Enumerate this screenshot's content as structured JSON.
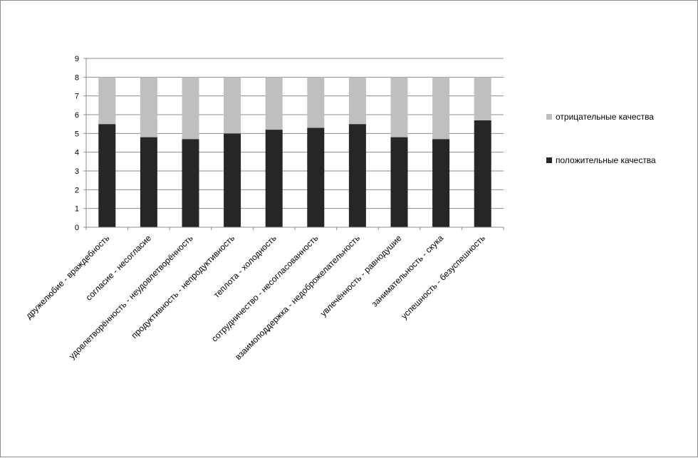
{
  "chart_data": {
    "type": "bar",
    "stacked": true,
    "categories": [
      "дружелюбие - враждебность",
      "согласие - несогласие",
      "удовлетворённость - неудовлетворённость",
      "продуктивность - непродуктивность",
      "теплота - холодность",
      "сотрудничество - несогласованность",
      "взаимоподдержка - недоброжелательность",
      "увлечённость - равнодушие",
      "занимательность - скука",
      "успешность - безуспешность"
    ],
    "series": [
      {
        "name": "положительные качества",
        "color": "#262626",
        "values": [
          5.5,
          4.8,
          4.7,
          5.0,
          5.2,
          5.3,
          5.5,
          4.8,
          4.7,
          5.7
        ]
      },
      {
        "name": "отрицательные качества",
        "color": "#bfbfbf",
        "values": [
          2.5,
          3.2,
          3.3,
          3.0,
          2.8,
          2.7,
          2.5,
          3.2,
          3.3,
          2.3
        ]
      }
    ],
    "ylim": [
      0,
      9
    ],
    "yticks": [
      "0",
      "1",
      "2",
      "3",
      "4",
      "5",
      "6",
      "7",
      "8",
      "9"
    ],
    "grid": true,
    "legend": "right",
    "title": "",
    "xlabel": "",
    "ylabel": ""
  }
}
